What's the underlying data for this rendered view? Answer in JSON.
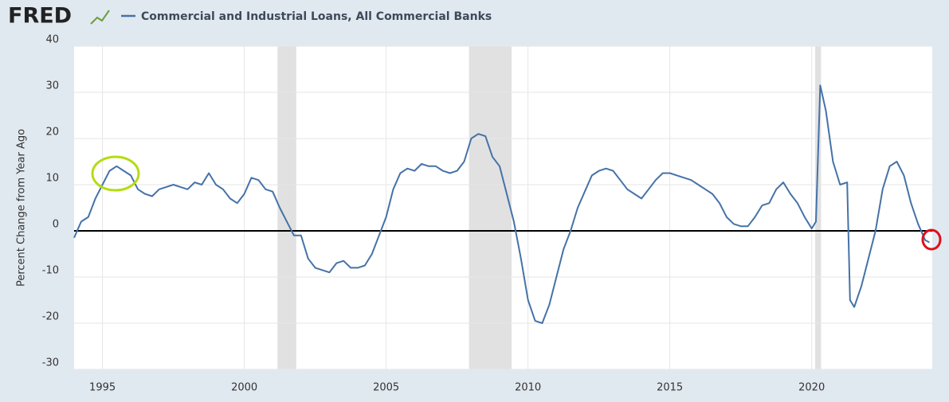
{
  "brand": "FRED",
  "chart_data": {
    "type": "line",
    "title": "Commercial and Industrial Loans, All Commercial Banks",
    "ylabel": "Percent Change from Year Ago",
    "x": [
      1994.0,
      1994.25,
      1994.5,
      1994.75,
      1995.0,
      1995.25,
      1995.5,
      1995.75,
      1996.0,
      1996.25,
      1996.5,
      1996.75,
      1997.0,
      1997.25,
      1997.5,
      1997.75,
      1998.0,
      1998.25,
      1998.5,
      1998.75,
      1999.0,
      1999.25,
      1999.5,
      1999.75,
      2000.0,
      2000.25,
      2000.5,
      2000.75,
      2001.0,
      2001.25,
      2001.5,
      2001.75,
      2002.0,
      2002.25,
      2002.5,
      2002.75,
      2003.0,
      2003.25,
      2003.5,
      2003.75,
      2004.0,
      2004.25,
      2004.5,
      2004.75,
      2005.0,
      2005.25,
      2005.5,
      2005.75,
      2006.0,
      2006.25,
      2006.5,
      2006.75,
      2007.0,
      2007.25,
      2007.5,
      2007.75,
      2008.0,
      2008.25,
      2008.5,
      2008.75,
      2009.0,
      2009.25,
      2009.5,
      2009.75,
      2010.0,
      2010.25,
      2010.5,
      2010.75,
      2011.0,
      2011.25,
      2011.5,
      2011.75,
      2012.0,
      2012.25,
      2012.5,
      2012.75,
      2013.0,
      2013.25,
      2013.5,
      2013.75,
      2014.0,
      2014.25,
      2014.5,
      2014.75,
      2015.0,
      2015.25,
      2015.5,
      2015.75,
      2016.0,
      2016.25,
      2016.5,
      2016.75,
      2017.0,
      2017.25,
      2017.5,
      2017.75,
      2018.0,
      2018.25,
      2018.5,
      2018.75,
      2019.0,
      2019.25,
      2019.5,
      2019.75,
      2020.0,
      2020.15,
      2020.3,
      2020.5,
      2020.75,
      2021.0,
      2021.25,
      2021.35,
      2021.5,
      2021.75,
      2022.0,
      2022.25,
      2022.5,
      2022.75,
      2023.0,
      2023.25,
      2023.5,
      2023.75,
      2024.0,
      2024.15
    ],
    "series": [
      {
        "name": "Commercial and Industrial Loans, All Commercial Banks",
        "color": "#4572a7",
        "values": [
          -1.5,
          2,
          3,
          7,
          10,
          13,
          14,
          13,
          12,
          9,
          8,
          7.5,
          9,
          9.5,
          10,
          9.5,
          9,
          10.5,
          10,
          12.5,
          10,
          9,
          7,
          6,
          8,
          11.5,
          11,
          9,
          8.5,
          5,
          2,
          -1,
          -1,
          -6,
          -8,
          -8.5,
          -9,
          -7,
          -6.5,
          -8,
          -8,
          -7.5,
          -5,
          -1,
          3,
          9,
          12.5,
          13.5,
          13,
          14.5,
          14,
          14,
          13,
          12.5,
          13,
          15,
          20,
          21,
          20.5,
          16,
          14,
          8,
          2,
          -6,
          -15,
          -19.5,
          -20,
          -16,
          -10,
          -4,
          0,
          5,
          8.5,
          12,
          13,
          13.5,
          13,
          11,
          9,
          8,
          7,
          9,
          11,
          12.5,
          12.5,
          12,
          11.5,
          11,
          10,
          9,
          8,
          6,
          3,
          1.5,
          1,
          1,
          3,
          5.5,
          6,
          9,
          10.5,
          8,
          6,
          3,
          0.5,
          2,
          31.5,
          26,
          15,
          10,
          10.5,
          -15,
          -16.5,
          -12,
          -6,
          0,
          9,
          14,
          15,
          12,
          6,
          1.5,
          -2,
          -2.5
        ]
      }
    ],
    "xlim": [
      1994.0,
      2024.25
    ],
    "ylim": [
      -30,
      40
    ],
    "xticks": [
      1995,
      2000,
      2005,
      2010,
      2015,
      2020
    ],
    "yticks": [
      -30,
      -20,
      -10,
      0,
      10,
      20,
      30,
      40
    ],
    "recessions": [
      [
        2001.17,
        2001.83
      ],
      [
        2007.92,
        2009.42
      ],
      [
        2020.12,
        2020.33
      ]
    ],
    "hline": 0,
    "grid": true
  }
}
